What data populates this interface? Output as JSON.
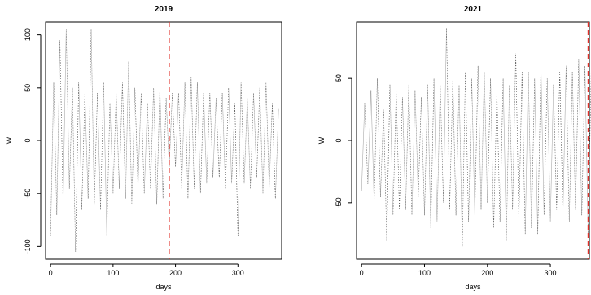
{
  "chart_data": [
    {
      "type": "line",
      "title": "2019",
      "xlabel": "days",
      "ylabel": "W",
      "xlim": [
        -8,
        370
      ],
      "ylim": [
        -112,
        112
      ],
      "x_ticks": [
        0,
        100,
        200,
        300
      ],
      "y_ticks": [
        -100,
        -50,
        0,
        50,
        100
      ],
      "grid": false,
      "vline": 190,
      "vline_color": "#e0302a",
      "series_color": "#555555",
      "x": [
        0,
        10,
        20,
        30,
        40,
        50,
        60,
        70,
        80,
        90,
        100,
        110,
        120,
        130,
        140,
        150,
        160,
        170,
        180,
        190,
        200,
        210,
        220,
        230,
        240,
        250,
        260,
        270,
        280,
        290,
        300,
        310,
        320,
        330,
        340,
        350,
        360
      ],
      "ymin": [
        -90,
        -70,
        -60,
        -45,
        -105,
        -65,
        -55,
        -60,
        -65,
        -90,
        -50,
        -45,
        -55,
        -60,
        -45,
        -50,
        -45,
        -60,
        -55,
        -25,
        -25,
        -45,
        -55,
        -45,
        -50,
        -40,
        -35,
        -35,
        -45,
        -40,
        -90,
        -40,
        -45,
        -35,
        -50,
        -45,
        -55
      ],
      "ymax": [
        55,
        95,
        105,
        50,
        55,
        45,
        105,
        45,
        55,
        35,
        45,
        55,
        75,
        50,
        45,
        35,
        50,
        50,
        40,
        45,
        45,
        55,
        60,
        55,
        45,
        45,
        40,
        45,
        50,
        35,
        55,
        40,
        45,
        50,
        55,
        35,
        30
      ]
    },
    {
      "type": "line",
      "title": "2021",
      "xlabel": "days",
      "ylabel": "W",
      "xlim": [
        -8,
        362
      ],
      "ylim": [
        -95,
        95
      ],
      "x_ticks": [
        0,
        100,
        200,
        300
      ],
      "y_ticks": [
        -50,
        0,
        50
      ],
      "grid": false,
      "vline": 360,
      "vline_color": "#e0302a",
      "series_color": "#555555",
      "x": [
        0,
        10,
        20,
        30,
        40,
        50,
        60,
        70,
        80,
        90,
        100,
        110,
        120,
        130,
        140,
        150,
        160,
        170,
        180,
        190,
        200,
        210,
        220,
        230,
        240,
        250,
        260,
        270,
        280,
        290,
        300,
        310,
        320,
        330,
        340,
        350,
        360
      ],
      "ymin": [
        -40,
        -35,
        -50,
        -45,
        -80,
        -60,
        -55,
        -55,
        -60,
        -45,
        -60,
        -70,
        -65,
        -50,
        -55,
        -60,
        -85,
        -65,
        -60,
        -55,
        -50,
        -70,
        -65,
        -80,
        -55,
        -65,
        -75,
        -70,
        -75,
        -60,
        -65,
        -55,
        -60,
        -65,
        -55,
        -60,
        -75
      ],
      "ymax": [
        30,
        40,
        50,
        25,
        45,
        40,
        35,
        45,
        40,
        35,
        45,
        50,
        45,
        90,
        50,
        45,
        55,
        50,
        60,
        55,
        50,
        40,
        50,
        45,
        70,
        55,
        55,
        50,
        60,
        50,
        45,
        55,
        60,
        55,
        65,
        60,
        55
      ]
    }
  ]
}
